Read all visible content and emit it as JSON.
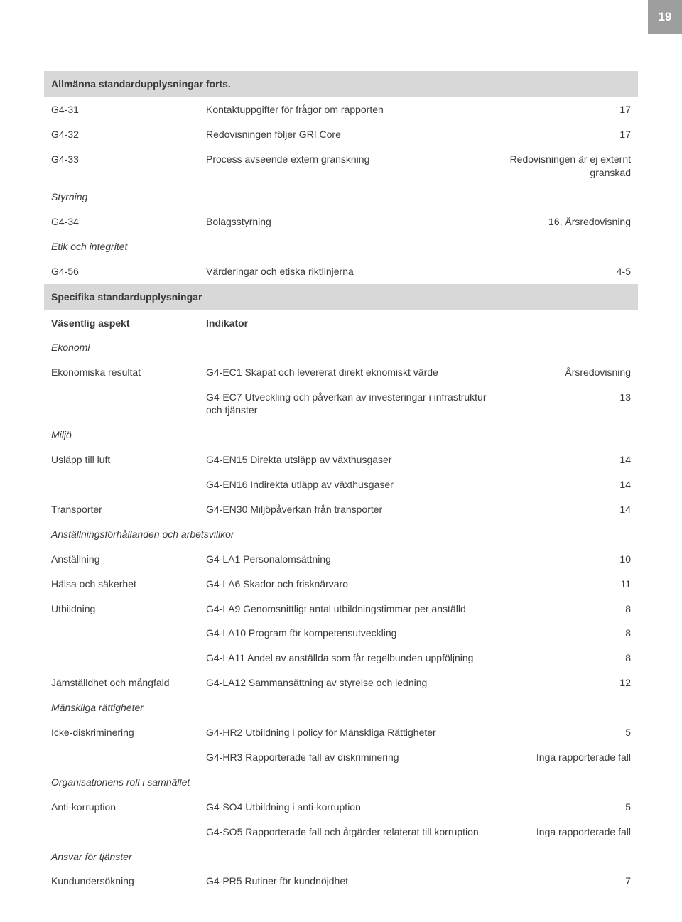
{
  "page_number": "19",
  "section1": {
    "title": "Allmänna standardupplysningar forts.",
    "rows": [
      {
        "c1": "G4-31",
        "c2": "Kontaktuppgifter för frågor om rapporten",
        "c3": "17"
      },
      {
        "c1": "G4-32",
        "c2": "Redovisningen följer GRI Core",
        "c3": "17"
      },
      {
        "c1": "G4-33",
        "c2": "Process avseende extern granskning",
        "c3": "Redovisningen är ej externt granskad"
      }
    ],
    "subheading_styrning": "Styrning",
    "row_styrning": {
      "c1": "G4-34",
      "c2": "Bolagsstyrning",
      "c3": "16, Årsredovisning"
    },
    "subheading_etik": "Etik och integritet",
    "row_etik": {
      "c1": "G4-56",
      "c2": "Värderingar och etiska riktlinjerna",
      "c3": "4-5"
    }
  },
  "section2": {
    "title": "Specifika standardupplysningar",
    "header": {
      "c1": "Väsentlig aspekt",
      "c2": "Indikator",
      "c3": ""
    },
    "group_ekonomi": "Ekonomi",
    "rows_ekonomi": [
      {
        "c1": "Ekonomiska resultat",
        "c2": "G4-EC1 Skapat och levererat direkt eknomiskt värde",
        "c3": "Årsredovisning"
      },
      {
        "c1": "",
        "c2": "G4-EC7 Utveckling och påverkan av investeringar i infrastruktur och tjänster",
        "c3": "13"
      }
    ],
    "group_miljo": "Miljö",
    "rows_miljo": [
      {
        "c1": "Usläpp till luft",
        "c2": "G4-EN15 Direkta utsläpp av växthusgaser",
        "c3": "14"
      },
      {
        "c1": "",
        "c2": "G4-EN16 Indirekta utläpp av växthusgaser",
        "c3": "14"
      },
      {
        "c1": "Transporter",
        "c2": "G4-EN30 Miljöpåverkan från transporter",
        "c3": "14"
      }
    ],
    "group_anst": "Anställningsförhållanden och arbetsvillkor",
    "rows_anst": [
      {
        "c1": "Anställning",
        "c2": "G4-LA1 Personalomsättning",
        "c3": "10"
      },
      {
        "c1": "Hälsa och säkerhet",
        "c2": "G4-LA6 Skador och frisknärvaro",
        "c3": "11"
      },
      {
        "c1": "Utbildning",
        "c2": "G4-LA9 Genomsnittligt antal utbildningstimmar per anställd",
        "c3": "8"
      },
      {
        "c1": "",
        "c2": "G4-LA10 Program för kompetensutveckling",
        "c3": "8"
      },
      {
        "c1": "",
        "c2": "G4-LA11 Andel av anställda som får regelbunden uppföljning",
        "c3": "8"
      },
      {
        "c1": "Jämställdhet och mångfald",
        "c2": "G4-LA12 Sammansättning av styrelse och ledning",
        "c3": "12"
      }
    ],
    "group_mr": "Mänskliga rättigheter",
    "rows_mr": [
      {
        "c1": "Icke-diskriminering",
        "c2": "G4-HR2 Utbildning i policy för Mänskliga Rättigheter",
        "c3": "5"
      },
      {
        "c1": "",
        "c2": "G4-HR3 Rapporterade fall av diskriminering",
        "c3": "Inga rapporterade fall"
      }
    ],
    "group_org": "Organisationens roll i samhället",
    "rows_org": [
      {
        "c1": "Anti-korruption",
        "c2": "G4-SO4 Utbildning i anti-korruption",
        "c3": "5"
      },
      {
        "c1": "",
        "c2": "G4-SO5 Rapporterade fall och åtgärder relaterat till korruption",
        "c3": "Inga rapporterade fall"
      }
    ],
    "group_ansvar": "Ansvar för tjänster",
    "rows_ansvar": [
      {
        "c1": "Kundundersökning",
        "c2": "G4-PR5 Rutiner för kundnöjdhet",
        "c3": "7"
      }
    ]
  }
}
